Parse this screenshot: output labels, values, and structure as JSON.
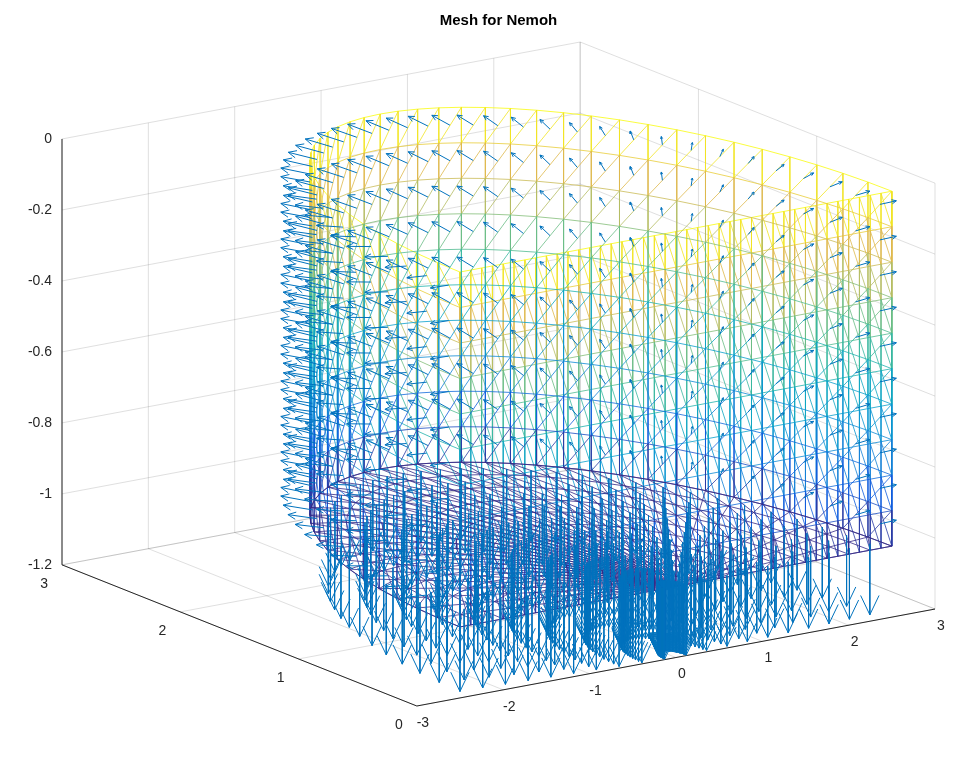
{
  "chart_data": {
    "type": "mesh3d",
    "title": "Mesh for Nemoh",
    "xlim": [
      -3,
      3
    ],
    "xticks": [
      -3,
      -2,
      -1,
      0,
      1,
      2,
      3
    ],
    "ylim": [
      0,
      3
    ],
    "yticks": [
      0,
      1,
      2,
      3
    ],
    "zlim": [
      -1.2,
      0
    ],
    "zticks": [
      -1.2,
      -1,
      -0.8,
      -0.6,
      -0.4,
      -0.2,
      0
    ],
    "grid": true,
    "mesh": {
      "radius": 2.5,
      "draft": 1,
      "panels_around": 40,
      "panels_down": 10,
      "panels_across": 40,
      "rings": 10
    },
    "normals": {
      "length": 0.2,
      "color": "#0072bd"
    }
  }
}
